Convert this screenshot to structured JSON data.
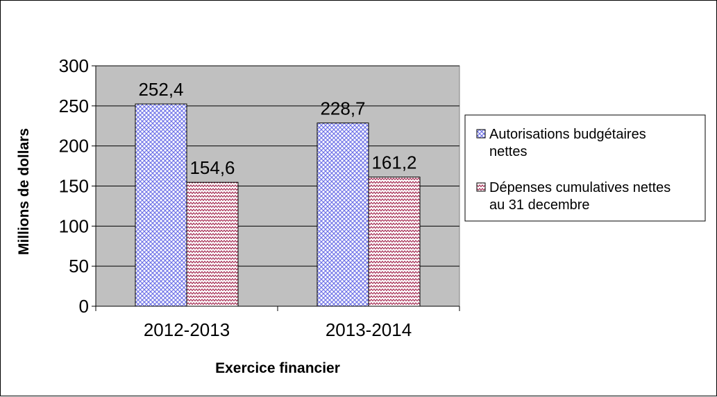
{
  "chart_data": {
    "type": "bar",
    "title": "",
    "xlabel": "Exercice financier",
    "ylabel": "Millions de dollars",
    "ylim": [
      0,
      300
    ],
    "yticks": [
      0,
      50,
      100,
      150,
      200,
      250,
      300
    ],
    "categories": [
      "2012-2013",
      "2013-2014"
    ],
    "series": [
      {
        "name": "Autorisations budgétaires nettes",
        "legend_lines": [
          "Autorisations budgétaires",
          "nettes"
        ],
        "values": [
          252.4,
          228.7
        ],
        "labels": [
          "252,4",
          "228,7"
        ],
        "color": "#8a8ef0",
        "pattern": "dotted-grid"
      },
      {
        "name": "Dépenses cumulatives nettes au 31 decembre",
        "legend_lines": [
          "Dépenses cumulatives nettes",
          "au 31 decembre"
        ],
        "values": [
          154.6,
          161.2
        ],
        "labels": [
          "154,6",
          "161,2"
        ],
        "color": "#a0224a",
        "pattern": "zigzag"
      }
    ],
    "plot_background": "#c0c0c0",
    "grid": true,
    "legend_position": "right"
  }
}
